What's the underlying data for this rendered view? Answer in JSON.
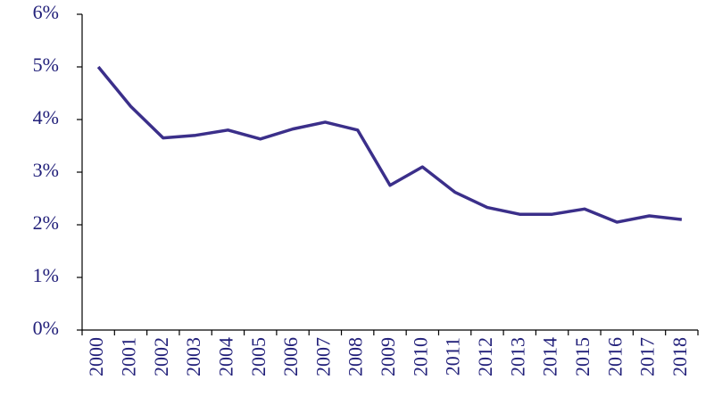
{
  "chart_data": {
    "type": "line",
    "categories": [
      "2000",
      "2001",
      "2002",
      "2003",
      "2004",
      "2005",
      "2006",
      "2007",
      "2008",
      "2009",
      "2010",
      "2011",
      "2012",
      "2013",
      "2014",
      "2015",
      "2016",
      "2017",
      "2018"
    ],
    "values": [
      5.0,
      4.25,
      3.65,
      3.7,
      3.8,
      3.63,
      3.82,
      3.95,
      3.8,
      2.75,
      3.1,
      2.62,
      2.33,
      2.2,
      2.2,
      2.3,
      2.05,
      2.17,
      2.1
    ],
    "color": "#3b2f8a",
    "ylim": [
      0,
      6
    ],
    "yticks": [
      {
        "value": 0,
        "label": "0%"
      },
      {
        "value": 1,
        "label": "1%"
      },
      {
        "value": 2,
        "label": "2%"
      },
      {
        "value": 3,
        "label": "3%"
      },
      {
        "value": 4,
        "label": "4%"
      },
      {
        "value": 5,
        "label": "5%"
      },
      {
        "value": 6,
        "label": "6%"
      }
    ]
  }
}
